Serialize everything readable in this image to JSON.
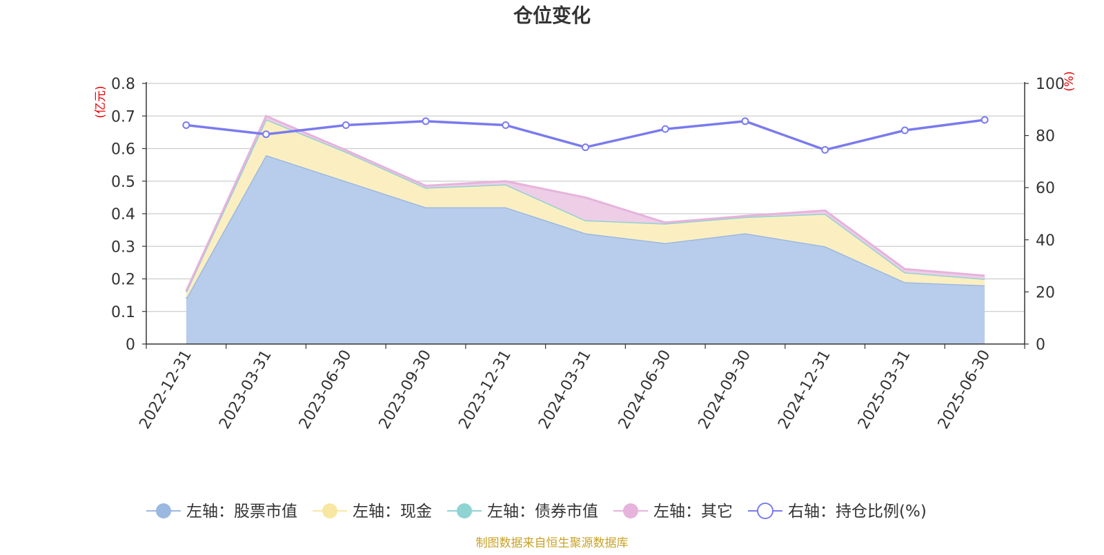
{
  "chart_data": {
    "type": "area",
    "title": "仓位变化",
    "left_axis": {
      "unit": "(亿元)",
      "ticks": [
        "0",
        "0.1",
        "0.2",
        "0.3",
        "0.4",
        "0.5",
        "0.6",
        "0.7",
        "0.8"
      ],
      "ylim": [
        0,
        0.8
      ]
    },
    "right_axis": {
      "unit": "(%)",
      "ticks": [
        "0",
        "20",
        "40",
        "60",
        "80",
        "100"
      ],
      "ylim": [
        0,
        100
      ]
    },
    "categories": [
      "2022-12-31",
      "2023-03-31",
      "2023-06-30",
      "2023-09-30",
      "2023-12-31",
      "2024-03-31",
      "2024-06-30",
      "2024-09-30",
      "2024-12-31",
      "2025-03-31",
      "2025-06-30"
    ],
    "series": [
      {
        "name": "左轴：股票市值",
        "axis": "left",
        "stack": true,
        "color": "#9bb8e1",
        "fill": "#b8cdeb",
        "values": [
          0.14,
          0.58,
          0.5,
          0.42,
          0.42,
          0.34,
          0.31,
          0.34,
          0.3,
          0.19,
          0.18
        ]
      },
      {
        "name": "左轴：现金",
        "axis": "left",
        "stack": true,
        "color": "#f8e7a2",
        "fill": "#fbefc2",
        "values": [
          0.02,
          0.11,
          0.09,
          0.06,
          0.07,
          0.04,
          0.06,
          0.05,
          0.1,
          0.03,
          0.02
        ]
      },
      {
        "name": "左轴：债券市值",
        "axis": "left",
        "stack": true,
        "color": "#8fd3d3",
        "fill": "#b5e3e3",
        "values": [
          0,
          0,
          0,
          0,
          0,
          0,
          0,
          0,
          0,
          0,
          0
        ]
      },
      {
        "name": "左轴：其它",
        "axis": "left",
        "stack": true,
        "color": "#e6b3dc",
        "fill": "#eecde7",
        "values": [
          0.003,
          0.01,
          0.005,
          0.006,
          0.01,
          0.07,
          0.003,
          0.003,
          0.01,
          0.01,
          0.01
        ]
      },
      {
        "name": "右轴：持仓比例(%)",
        "axis": "right",
        "stack": false,
        "color": "#7a7aee",
        "values": [
          84,
          80.5,
          84,
          85.5,
          84,
          75.5,
          82.5,
          85.5,
          74.5,
          82,
          86
        ]
      }
    ],
    "legend_position": "bottom",
    "grid": true
  },
  "footer": {
    "source": "制图数据来自恒生聚源数据库"
  }
}
